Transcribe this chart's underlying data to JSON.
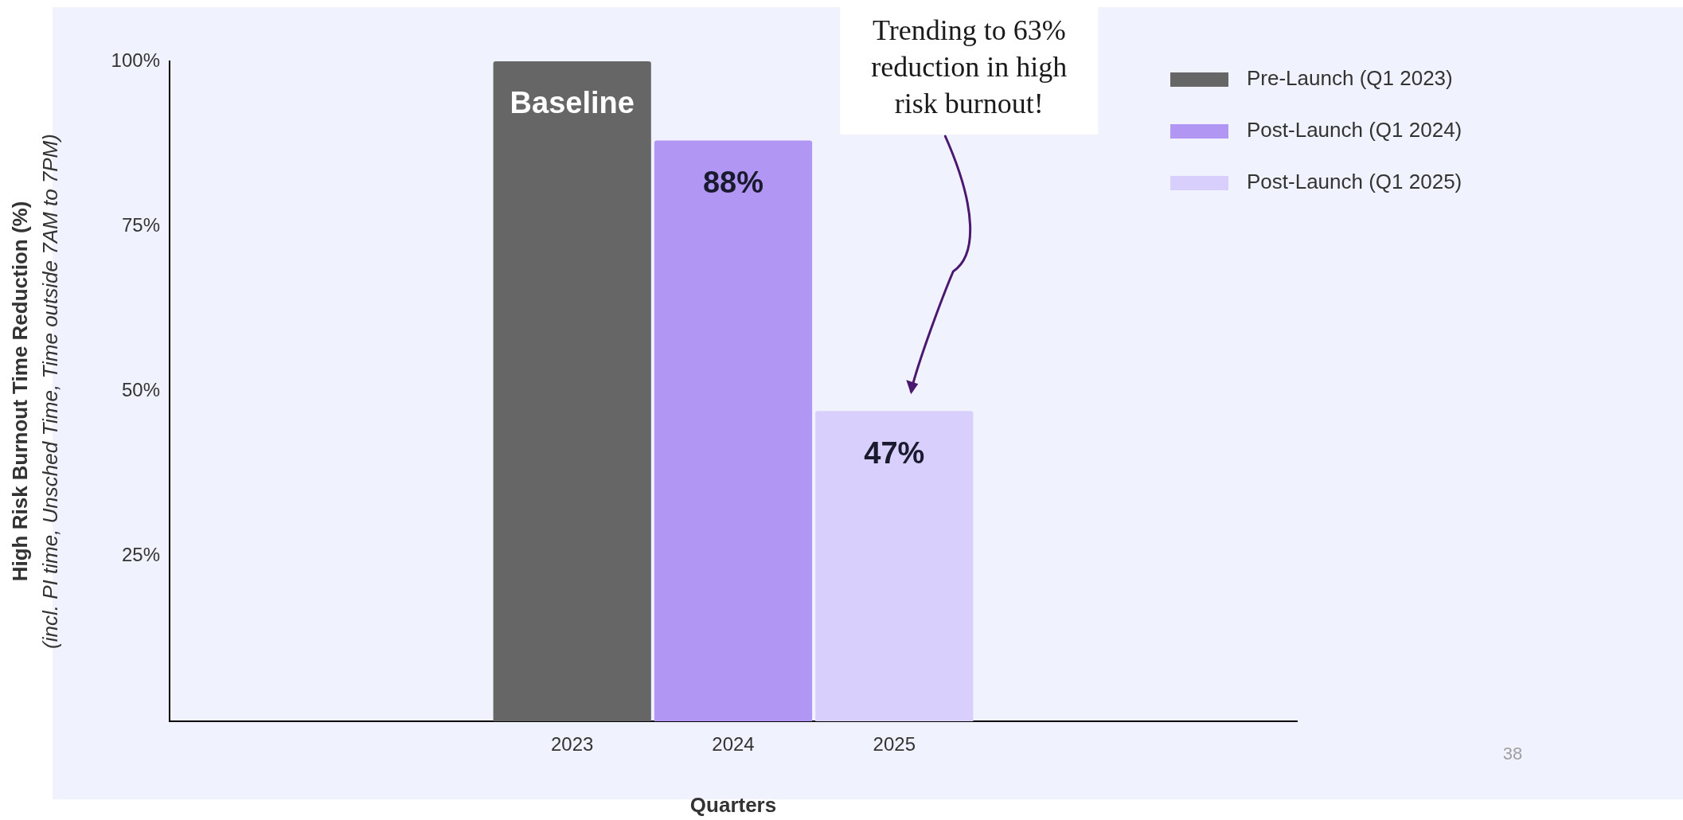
{
  "chart_data": {
    "type": "bar",
    "xlabel": "Quarters",
    "ylabel": "High Risk Burnout Time Reduction (%)\n(incl. PI time, Unsched Time, Time outside 7AM to 7PM)",
    "categories": [
      null,
      null,
      "2023",
      "2024",
      "2025",
      null,
      null
    ],
    "series": [
      {
        "name": "Pre-Launch (Q1 2023)",
        "color": "#666666",
        "values": [
          null,
          null,
          100,
          null,
          null,
          null,
          null
        ],
        "value_labels": [
          null,
          null,
          "Baseline",
          null,
          null,
          null,
          null
        ]
      },
      {
        "name": "Post-Launch (Q1 2024)",
        "color": "#b197f3",
        "values": [
          null,
          null,
          null,
          88,
          null,
          null,
          null
        ],
        "value_labels": [
          null,
          null,
          null,
          "88%",
          null,
          null,
          null
        ]
      },
      {
        "name": "Post-Launch (Q1 2025)",
        "color": "#d8cffd",
        "values": [
          null,
          null,
          null,
          null,
          47,
          null,
          null
        ],
        "value_labels": [
          null,
          null,
          null,
          null,
          "47%",
          null,
          null
        ]
      }
    ],
    "ylim": [
      0,
      100
    ],
    "yticks": [
      {
        "value": 25,
        "label": "25%"
      },
      {
        "value": 50,
        "label": "50%"
      },
      {
        "value": 75,
        "label": "75%"
      },
      {
        "value": 100,
        "label": "100%"
      }
    ],
    "grid": false,
    "legend": "top right",
    "annotations": [
      "Trending to 63% reduction in high risk burnout!",
      "38"
    ]
  }
}
